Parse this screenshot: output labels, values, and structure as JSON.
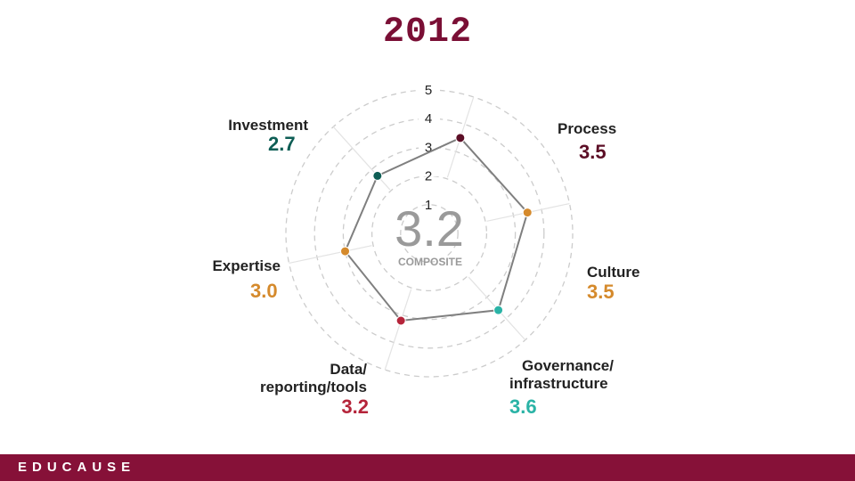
{
  "title": "2012",
  "footer": {
    "logo": "EDUCAUSE"
  },
  "colors": {
    "title": "#7a0f35",
    "footer": "#861138",
    "grid": "#cccccc",
    "line": "#7f7f7f",
    "composite": "#9a9a9a"
  },
  "chart_data": {
    "type": "radar",
    "title": "2012",
    "scale": {
      "min": 0,
      "max": 5,
      "rings": [
        "1",
        "2",
        "3",
        "4",
        "5"
      ]
    },
    "composite": {
      "value": "3.2",
      "label": "COMPOSITE"
    },
    "axes": [
      {
        "name": [
          "Process"
        ],
        "value": 3.5,
        "value_label": "3.5",
        "color": "#5c0e26"
      },
      {
        "name": [
          "Culture"
        ],
        "value": 3.5,
        "value_label": "3.5",
        "color": "#d58a2c"
      },
      {
        "name": [
          "Governance/",
          "infrastructure"
        ],
        "value": 3.6,
        "value_label": "3.6",
        "color": "#2ab3a6"
      },
      {
        "name": [
          "Data/",
          "reporting/tools"
        ],
        "value": 3.2,
        "value_label": "3.2",
        "color": "#b5243a"
      },
      {
        "name": [
          "Expertise"
        ],
        "value": 3.0,
        "value_label": "3.0",
        "color": "#d58a2c"
      },
      {
        "name": [
          "Investment"
        ],
        "value": 2.7,
        "value_label": "2.7",
        "color": "#0e5e55"
      }
    ]
  }
}
